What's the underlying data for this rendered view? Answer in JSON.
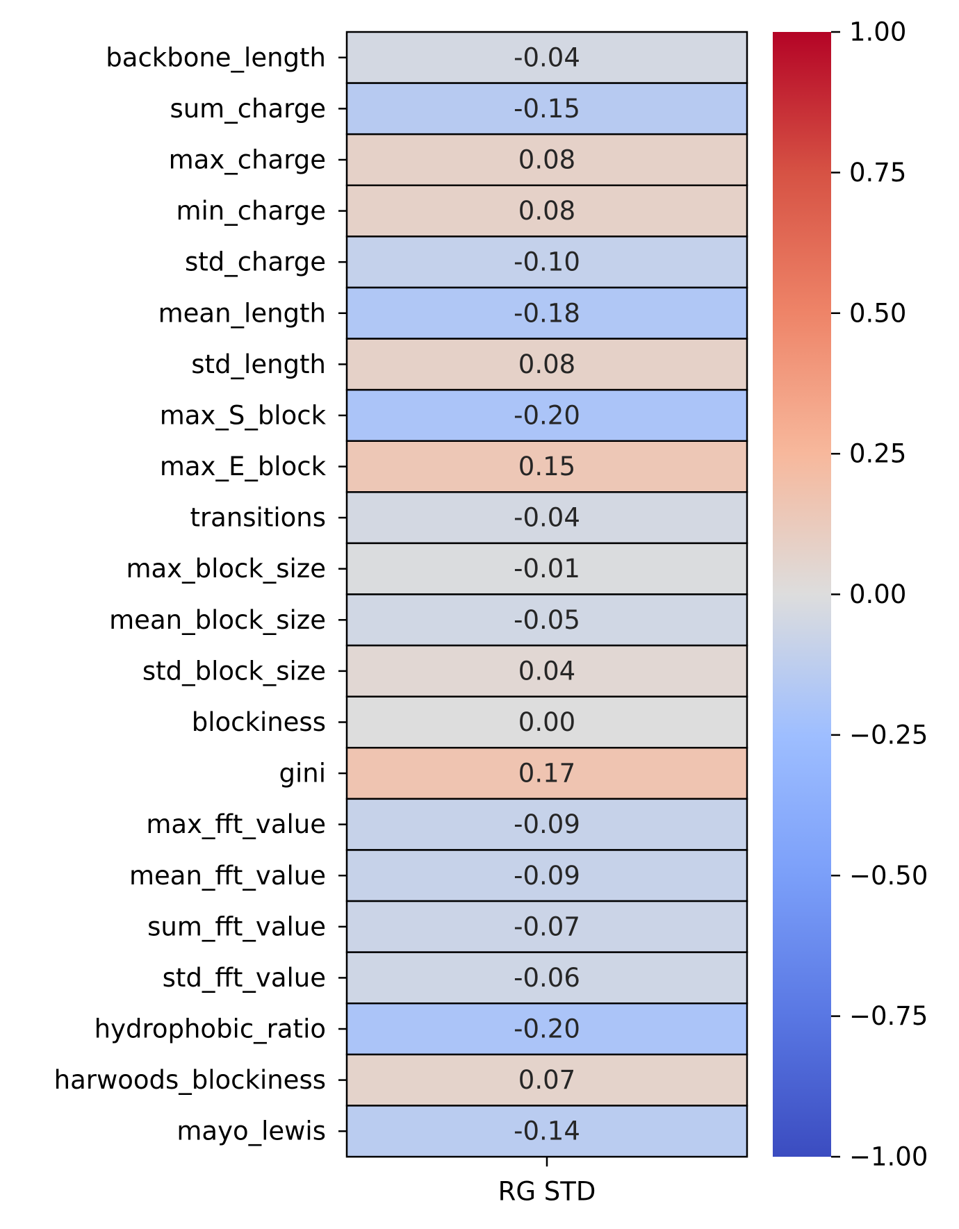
{
  "chart_data": {
    "type": "heatmap",
    "title": "",
    "xlabel": "",
    "ylabel": "",
    "columns": [
      "RG STD"
    ],
    "rows": [
      "backbone_length",
      "sum_charge",
      "max_charge",
      "min_charge",
      "std_charge",
      "mean_length",
      "std_length",
      "max_S_block",
      "max_E_block",
      "transitions",
      "max_block_size",
      "mean_block_size",
      "std_block_size",
      "blockiness",
      "gini",
      "max_fft_value",
      "mean_fft_value",
      "sum_fft_value",
      "std_fft_value",
      "hydrophobic_ratio",
      "harwoods_blockiness",
      "mayo_lewis"
    ],
    "values": [
      -0.04,
      -0.15,
      0.08,
      0.08,
      -0.1,
      -0.18,
      0.08,
      -0.2,
      0.15,
      -0.04,
      -0.01,
      -0.05,
      0.04,
      0.0,
      0.17,
      -0.09,
      -0.09,
      -0.07,
      -0.06,
      -0.2,
      0.07,
      -0.14
    ],
    "cell_labels": [
      "-0.04",
      "-0.15",
      "0.08",
      "0.08",
      "-0.10",
      "-0.18",
      "0.08",
      "-0.20",
      "0.15",
      "-0.04",
      "-0.01",
      "-0.05",
      "0.04",
      "0.00",
      "0.17",
      "-0.09",
      "-0.09",
      "-0.07",
      "-0.06",
      "-0.20",
      "0.07",
      "-0.14"
    ],
    "colormap": "coolwarm",
    "vmin": -1.0,
    "vmax": 1.0,
    "colorbar_ticks": [
      1.0,
      0.75,
      0.5,
      0.25,
      0.0,
      -0.25,
      -0.5,
      -0.75,
      -1.0
    ],
    "colorbar_tick_labels": [
      "1.00",
      "0.75",
      "0.50",
      "0.25",
      "0.00",
      "−0.25",
      "−0.50",
      "−0.75",
      "−1.00"
    ],
    "cell_border_color": "#000000",
    "text_color": "#262626"
  }
}
